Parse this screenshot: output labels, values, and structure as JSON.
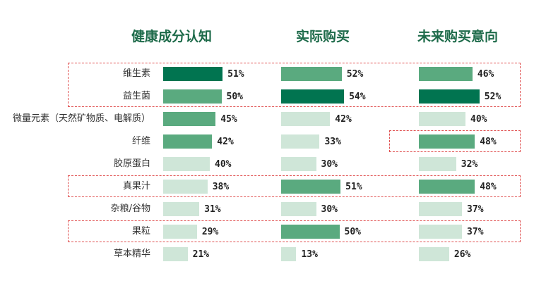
{
  "chart_data": {
    "type": "bar",
    "orientation": "horizontal",
    "categories": [
      "维生素",
      "益生菌",
      "微量元素（天然矿物质、电解质）",
      "纤维",
      "胶原蛋白",
      "真果汁",
      "杂粮/谷物",
      "果粒",
      "草本精华"
    ],
    "series": [
      {
        "name": "健康成分认知",
        "values": [
          51,
          50,
          45,
          42,
          40,
          38,
          31,
          29,
          21
        ]
      },
      {
        "name": "实际购买",
        "values": [
          52,
          54,
          42,
          33,
          30,
          51,
          30,
          50,
          13
        ]
      },
      {
        "name": "未来购买意向",
        "values": [
          46,
          52,
          40,
          48,
          32,
          48,
          37,
          37,
          26
        ]
      }
    ],
    "value_suffix": "%",
    "xlim": [
      0,
      100
    ],
    "grid": false,
    "colors": {
      "dark": "#017450",
      "mid": "#5aaa7f",
      "light": "#cfe6d8",
      "highlight_border": "#e05050"
    },
    "highlights": [
      {
        "panels": "all",
        "categories": [
          "维生素",
          "益生菌"
        ]
      },
      {
        "panels": "all",
        "categories": [
          "真果汁"
        ]
      },
      {
        "panels": "all",
        "categories": [
          "果粒"
        ]
      },
      {
        "panels": [
          "未来购买意向"
        ],
        "categories": [
          "纤维"
        ]
      }
    ]
  }
}
